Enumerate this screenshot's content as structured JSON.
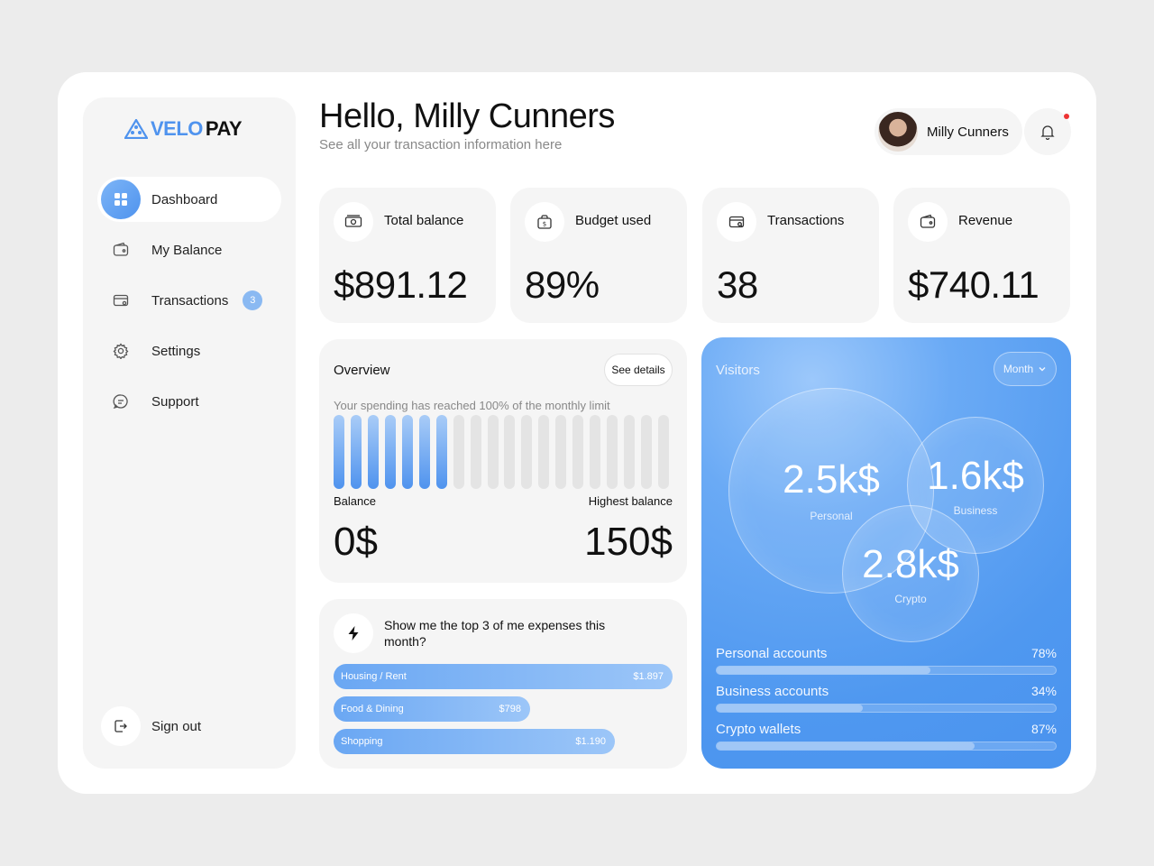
{
  "brand": {
    "name_part1": "VELO",
    "name_part2": "PAY"
  },
  "sidebar": {
    "items": [
      {
        "label": "Dashboard",
        "icon": "grid-icon",
        "active": true
      },
      {
        "label": "My Balance",
        "icon": "wallet-icon"
      },
      {
        "label": "Transactions",
        "icon": "card-icon",
        "badge": "3"
      },
      {
        "label": "Settings",
        "icon": "gear-icon"
      },
      {
        "label": "Support",
        "icon": "chat-icon"
      }
    ],
    "signout": "Sign out"
  },
  "header": {
    "greeting": "Hello, Milly Cunners",
    "subtitle": "See all your transaction information here",
    "user_name": "Milly Cunners"
  },
  "stats": [
    {
      "label": "Total balance",
      "value": "$891.12",
      "icon": "cash-icon"
    },
    {
      "label": "Budget used",
      "value": "89%",
      "icon": "bag-icon"
    },
    {
      "label": "Transactions",
      "value": "38",
      "icon": "card-search-icon"
    },
    {
      "label": "Revenue",
      "value": "$740.11",
      "icon": "wallet-icon"
    }
  ],
  "overview": {
    "title": "Overview",
    "see_details": "See details",
    "caption": "Your spending has reached 100% of the monthly limit",
    "bars_total": 20,
    "bars_filled": 7,
    "balance_label": "Balance",
    "balance_value": "0$",
    "highest_label": "Highest balance",
    "highest_value": "150$"
  },
  "expenses": {
    "question": "Show me  the top 3 of me expenses this month?",
    "items": [
      {
        "name": "Housing / Rent",
        "amount": "$1.897",
        "fraction": 1.0
      },
      {
        "name": "Food & Dining",
        "amount": "$798",
        "fraction": 0.58
      },
      {
        "name": "Shopping",
        "amount": "$1.190",
        "fraction": 0.83
      }
    ]
  },
  "visitors": {
    "title": "Visitors",
    "period": "Month",
    "bubbles": [
      {
        "amount": "2.5k$",
        "label": "Personal"
      },
      {
        "amount": "1.6k$",
        "label": "Business"
      },
      {
        "amount": "2.8k$",
        "label": "Crypto"
      }
    ],
    "accounts": [
      {
        "label": "Personal accounts",
        "pct": "78%",
        "fraction": 0.63
      },
      {
        "label": "Business accounts",
        "pct": "34%",
        "fraction": 0.43
      },
      {
        "label": "Crypto wallets",
        "pct": "87%",
        "fraction": 0.76
      }
    ]
  },
  "colors": {
    "accent": "#4f93ee",
    "accent_light": "#8ab9f2",
    "notification": "#e33333"
  }
}
